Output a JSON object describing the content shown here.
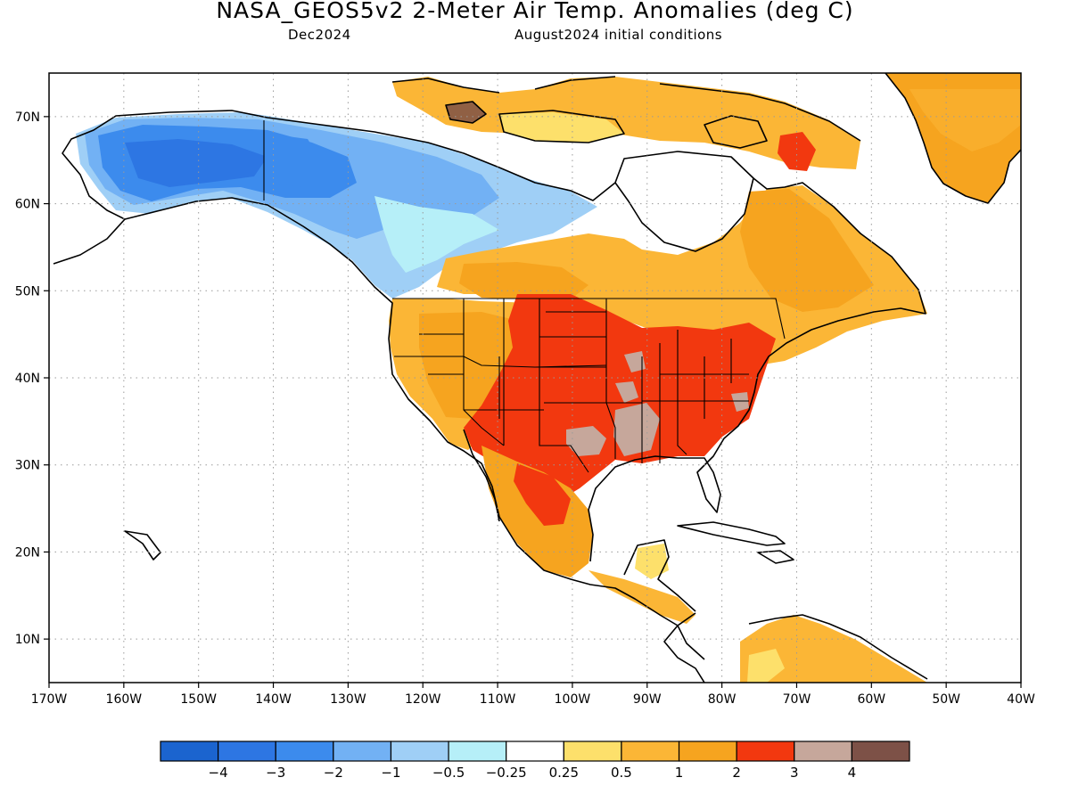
{
  "header": {
    "title": "NASA_GEOS5v2 2-Meter Air Temp. Anomalies (deg C)",
    "valid_month": "Dec2024",
    "init_conditions": "August2024 initial conditions"
  },
  "map": {
    "lon_range": [
      -170,
      -40
    ],
    "lat_range": [
      5,
      75
    ],
    "lon_ticks": [
      {
        "value": -170,
        "label": "170W"
      },
      {
        "value": -160,
        "label": "160W"
      },
      {
        "value": -150,
        "label": "150W"
      },
      {
        "value": -140,
        "label": "140W"
      },
      {
        "value": -130,
        "label": "130W"
      },
      {
        "value": -120,
        "label": "120W"
      },
      {
        "value": -110,
        "label": "110W"
      },
      {
        "value": -100,
        "label": "100W"
      },
      {
        "value": -90,
        "label": "90W"
      },
      {
        "value": -80,
        "label": "80W"
      },
      {
        "value": -70,
        "label": "70W"
      },
      {
        "value": -60,
        "label": "60W"
      },
      {
        "value": -50,
        "label": "50W"
      },
      {
        "value": -40,
        "label": "40W"
      }
    ],
    "lat_ticks": [
      {
        "value": 70,
        "label": "70N"
      },
      {
        "value": 60,
        "label": "60N"
      },
      {
        "value": 50,
        "label": "50N"
      },
      {
        "value": 40,
        "label": "40N"
      },
      {
        "value": 30,
        "label": "30N"
      },
      {
        "value": 20,
        "label": "20N"
      },
      {
        "value": 10,
        "label": "10N"
      }
    ],
    "grid": true
  },
  "colorbar": {
    "colors": [
      "#1b64cf",
      "#2d76e3",
      "#3c8bed",
      "#72b1f4",
      "#9fcff6",
      "#b6eff8",
      "#ffffff",
      "#fde06b",
      "#fbb636",
      "#f6a41f",
      "#f2380f",
      "#c6a79b",
      "#7d5147"
    ],
    "labels": [
      "−4",
      "−3",
      "−2",
      "−1",
      "−0.5",
      "−0.25",
      "0.25",
      "0.5",
      "1",
      "2",
      "3",
      "4"
    ]
  }
}
